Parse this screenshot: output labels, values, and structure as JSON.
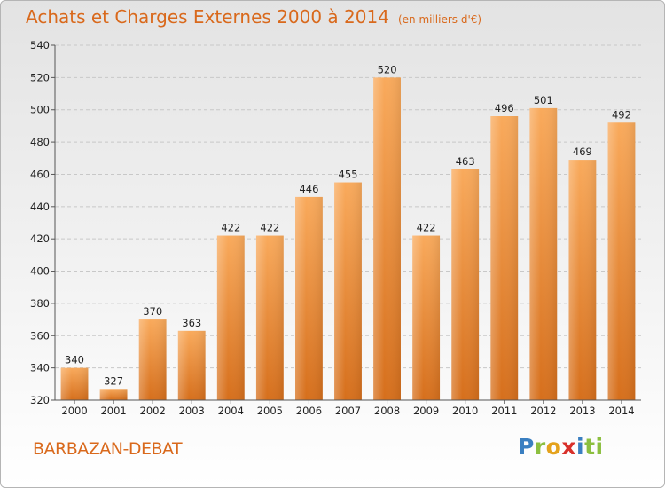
{
  "header": {
    "title": "Achats et Charges Externes 2000 à 2014",
    "subtitle": "(en milliers d'€)"
  },
  "footer": {
    "place": "BARBAZAN-DEBAT",
    "logo": "Proxiti"
  },
  "colors": {
    "title": "#d9691c",
    "bar_light": "#f7a455",
    "bar_dark": "#d9731f",
    "grid": "#c8c8c8"
  },
  "chart_data": {
    "type": "bar",
    "title": "Achats et Charges Externes 2000 à 2014",
    "subtitle": "(en milliers d'€)",
    "categories": [
      "2000",
      "2001",
      "2002",
      "2003",
      "2004",
      "2005",
      "2006",
      "2007",
      "2008",
      "2009",
      "2010",
      "2011",
      "2012",
      "2013",
      "2014"
    ],
    "values": [
      340,
      327,
      370,
      363,
      422,
      422,
      446,
      455,
      520,
      422,
      463,
      496,
      501,
      469,
      492
    ],
    "ylim": [
      320,
      540
    ],
    "yticks": [
      320,
      340,
      360,
      380,
      400,
      420,
      440,
      460,
      480,
      500,
      520,
      540
    ],
    "grid": true,
    "legend": "none"
  }
}
